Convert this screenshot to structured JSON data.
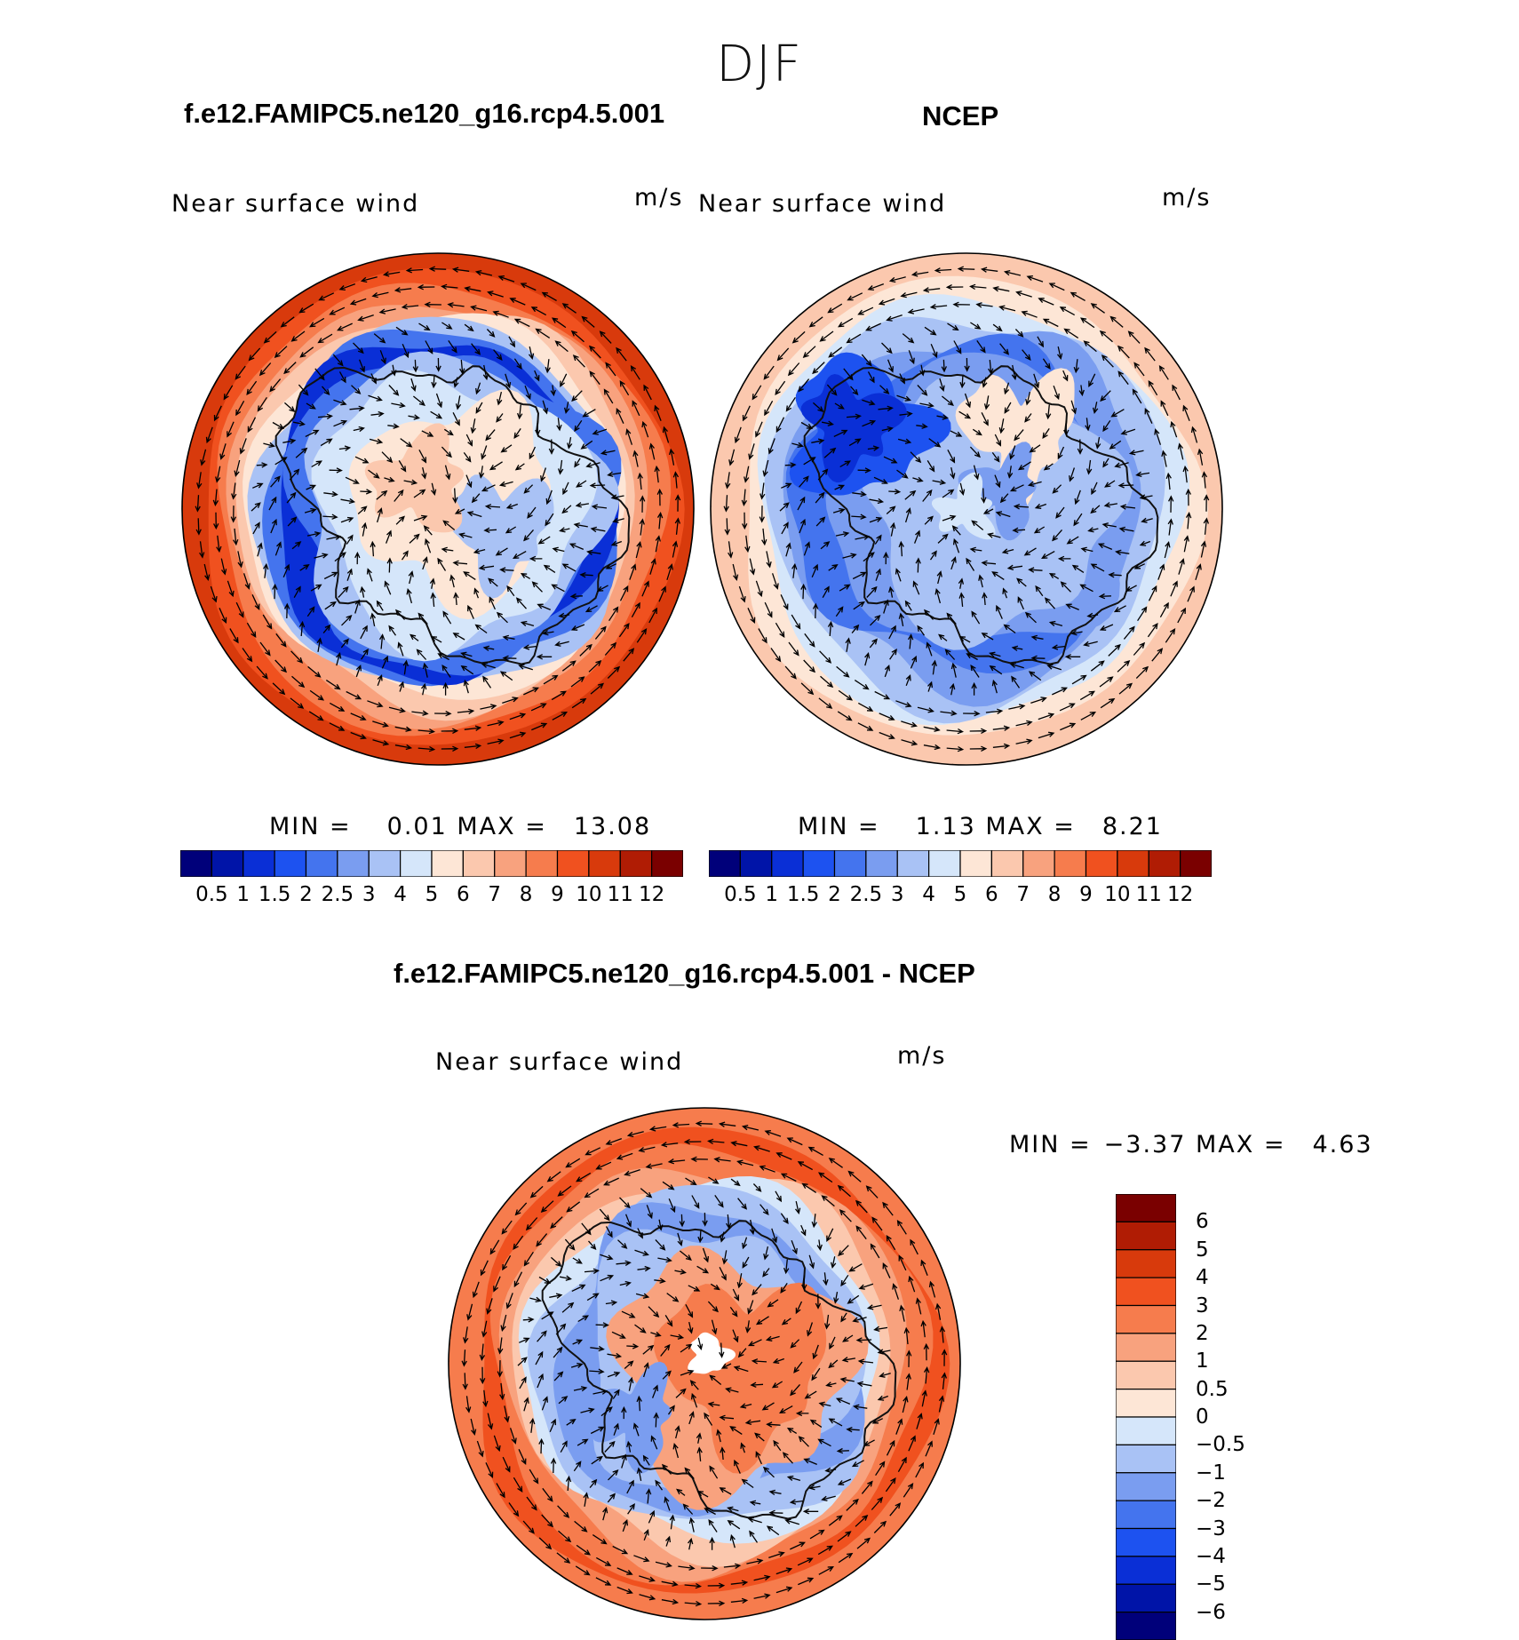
{
  "season": "DJF",
  "panels": {
    "model": {
      "title": "f.e12.FAMIPC5.ne120_g16.rcp4.5.001",
      "variable": "Near surface wind",
      "units": "m/s",
      "min_label": "MIN =",
      "min_value": "0.01",
      "max_label": "MAX =",
      "max_value": "13.08"
    },
    "obs": {
      "title": "NCEP",
      "variable": "Near surface wind",
      "units": "m/s",
      "min_label": "MIN =",
      "min_value": "1.13",
      "max_label": "MAX =",
      "max_value": "8.21"
    },
    "diff": {
      "title": "f.e12.FAMIPC5.ne120_g16.rcp4.5.001 - NCEP",
      "variable": "Near surface wind",
      "units": "m/s",
      "min_label": "MIN =",
      "min_value": "−3.37",
      "max_label": "MAX =",
      "max_value": "4.63"
    }
  },
  "chart_data": [
    {
      "type": "heatmap",
      "projection": "south-polar-stereographic",
      "title": "f.e12.FAMIPC5.ne120_g16.rcp4.5.001",
      "variable": "Near surface wind",
      "units": "m/s",
      "min": 0.01,
      "max": 13.08,
      "colorbar_orientation": "horizontal",
      "levels": [
        "0.5",
        "1",
        "1.5",
        "2",
        "2.5",
        "3",
        "4",
        "5",
        "6",
        "7",
        "8",
        "9",
        "10",
        "11",
        "12"
      ],
      "colors": [
        "#00007a",
        "#0014a8",
        "#0a2fd6",
        "#1d52f0",
        "#4474ee",
        "#7a9df0",
        "#a9c2f5",
        "#d5e6fa",
        "#fde6d6",
        "#fbc8ae",
        "#f8a27e",
        "#f67c4d",
        "#f0511f",
        "#d83a0c",
        "#b01c04",
        "#7a0000"
      ],
      "description_ring": "strong westerly circumpolar flow (9-13 m/s) over Southern Ocean, weak (<2 m/s) coastal band, katabatic 5-7 m/s over ice sheet"
    },
    {
      "type": "heatmap",
      "projection": "south-polar-stereographic",
      "title": "NCEP",
      "variable": "Near surface wind",
      "units": "m/s",
      "min": 1.13,
      "max": 8.21,
      "colorbar_orientation": "horizontal",
      "levels": [
        "0.5",
        "1",
        "1.5",
        "2",
        "2.5",
        "3",
        "4",
        "5",
        "6",
        "7",
        "8",
        "9",
        "10",
        "11",
        "12"
      ],
      "colors": [
        "#00007a",
        "#0014a8",
        "#0a2fd6",
        "#1d52f0",
        "#4474ee",
        "#7a9df0",
        "#a9c2f5",
        "#d5e6fa",
        "#fde6d6",
        "#fbc8ae",
        "#f8a27e",
        "#f67c4d",
        "#f0511f",
        "#d83a0c",
        "#b01c04",
        "#7a0000"
      ]
    },
    {
      "type": "heatmap",
      "projection": "south-polar-stereographic",
      "title": "f.e12.FAMIPC5.ne120_g16.rcp4.5.001 - NCEP",
      "variable": "Near surface wind",
      "units": "m/s",
      "min": -3.37,
      "max": 4.63,
      "colorbar_orientation": "vertical",
      "levels": [
        "6",
        "5",
        "4",
        "3",
        "2",
        "1",
        "0.5",
        "0",
        "−0.5",
        "−1",
        "−2",
        "−3",
        "−4",
        "−5",
        "−6"
      ],
      "colors": [
        "#7a0000",
        "#b01c04",
        "#d83a0c",
        "#f0511f",
        "#f67c4d",
        "#f8a27e",
        "#fbc8ae",
        "#fde6d6",
        "#d5e6fa",
        "#a9c2f5",
        "#7a9df0",
        "#4474ee",
        "#1d52f0",
        "#0a2fd6",
        "#0014a8",
        "#00007a"
      ]
    }
  ]
}
